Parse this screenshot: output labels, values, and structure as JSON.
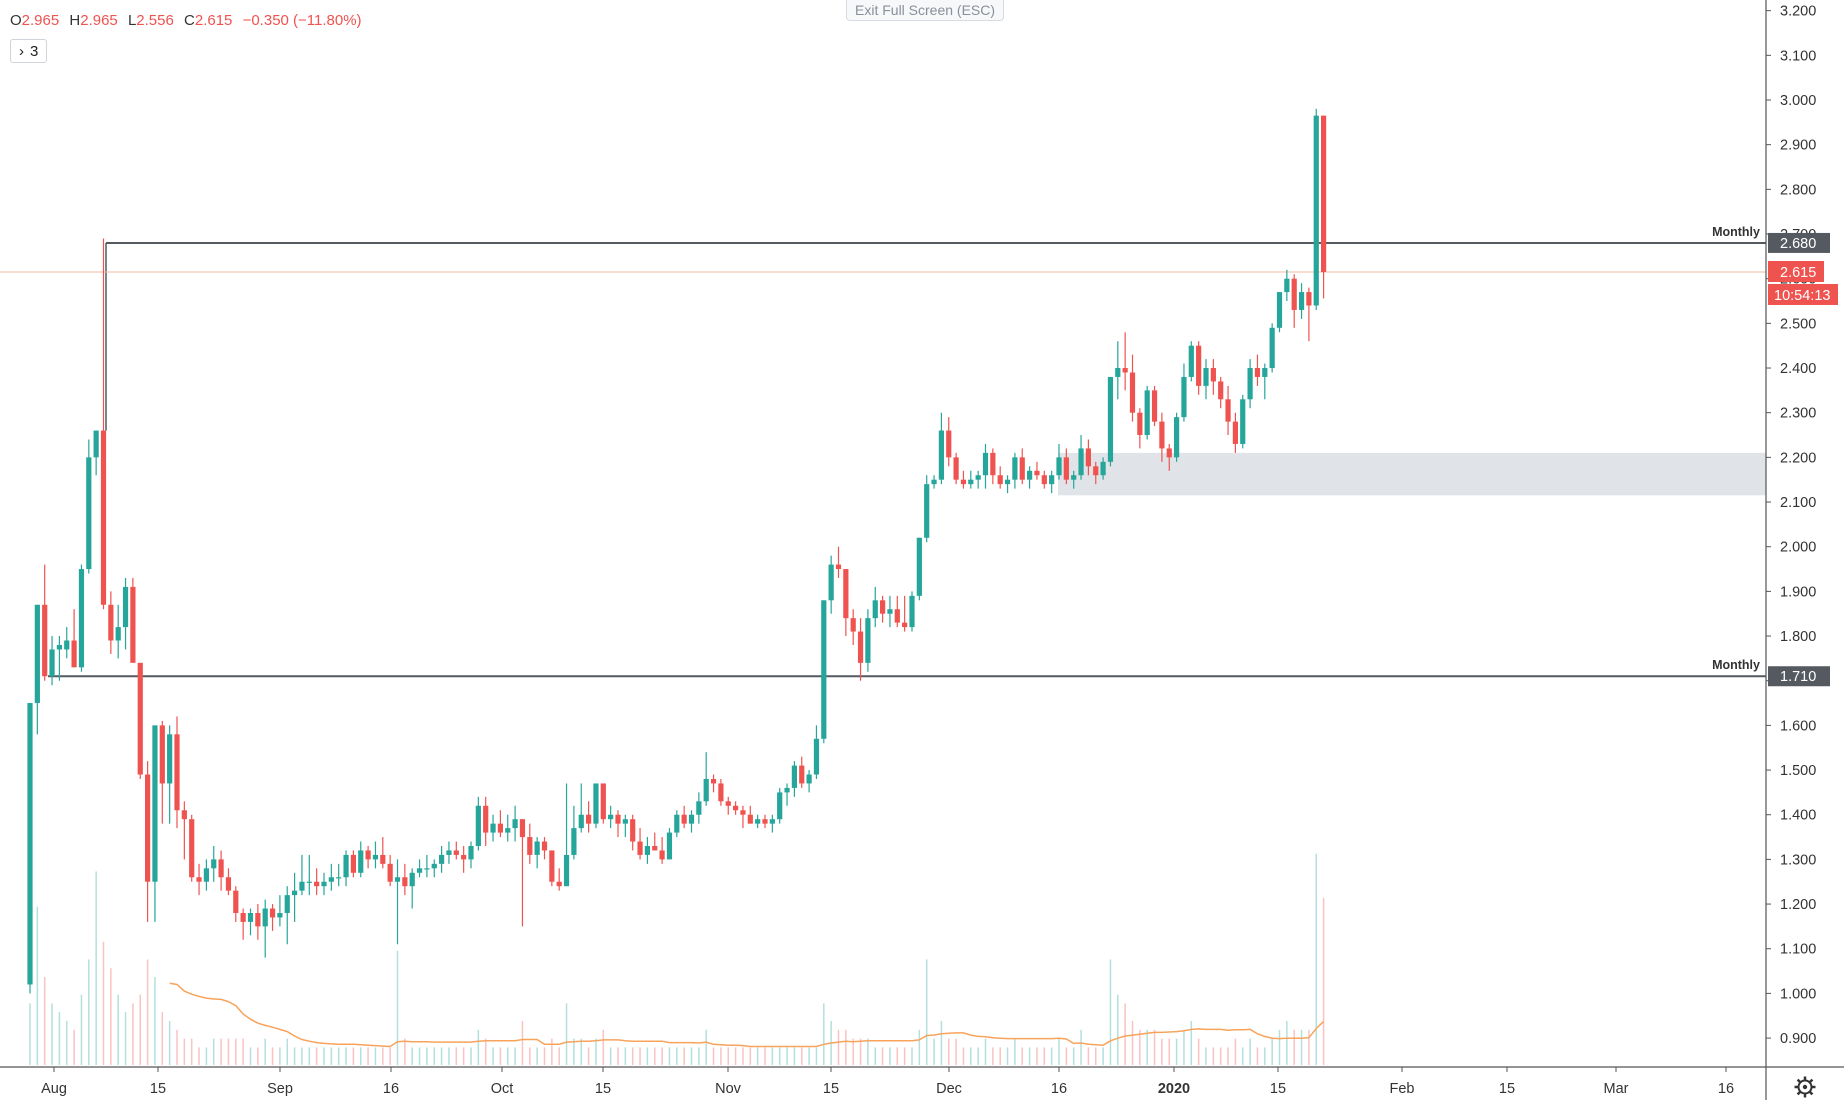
{
  "header": {
    "ohlc": [
      {
        "key": "O",
        "value": "2.965"
      },
      {
        "key": "H",
        "value": "2.965"
      },
      {
        "key": "L",
        "value": "2.556"
      },
      {
        "key": "C",
        "value": "2.615"
      }
    ],
    "change": "−0.350 (−11.80%)",
    "indicator_count": "3",
    "exit_fullscreen": "Exit Full Screen (ESC)",
    "settings_icon": "gear-icon"
  },
  "colors": {
    "up": "#26a69a",
    "down": "#ef5350",
    "ma": "#f7a35c",
    "zone": "#e0e3e7",
    "level": "#555a60",
    "price_line": "#f2b8a0",
    "axis_text": "#333333"
  },
  "chart_data": {
    "type": "candlestick",
    "x_ticks": [
      "Aug",
      "15",
      "Sep",
      "16",
      "Oct",
      "15",
      "Nov",
      "15",
      "Dec",
      "16",
      "2020",
      "15",
      "Feb",
      "15",
      "Mar",
      "16"
    ],
    "y_ticks": [
      "3.200",
      "3.100",
      "3.000",
      "2.900",
      "2.800",
      "2.700",
      "2.600",
      "2.500",
      "2.400",
      "2.300",
      "2.200",
      "2.100",
      "2.000",
      "1.900",
      "1.800",
      "1.700",
      "1.600",
      "1.500",
      "1.400",
      "1.300",
      "1.200",
      "1.100",
      "1.000",
      "0.900"
    ],
    "ylim": [
      0.82,
      3.2
    ],
    "levels": [
      {
        "label": "Monthly",
        "value": 2.68,
        "display": "2.680"
      },
      {
        "label": "Monthly",
        "value": 1.71,
        "display": "1.710"
      }
    ],
    "zone": {
      "from": 2.115,
      "to": 2.21
    },
    "last_price": {
      "value": 2.615,
      "display": "2.615",
      "countdown": "10:54:13"
    },
    "ohlc_series": [
      [
        1.02,
        1.65,
        1.0,
        1.65
      ],
      [
        1.65,
        1.87,
        1.58,
        1.87
      ],
      [
        1.87,
        1.96,
        1.7,
        1.71
      ],
      [
        1.71,
        1.8,
        1.69,
        1.77
      ],
      [
        1.77,
        1.8,
        1.7,
        1.78
      ],
      [
        1.77,
        1.82,
        1.75,
        1.79
      ],
      [
        1.79,
        1.86,
        1.73,
        1.73
      ],
      [
        1.73,
        1.96,
        1.72,
        1.95
      ],
      [
        1.95,
        2.24,
        1.94,
        2.2
      ],
      [
        2.2,
        2.26,
        2.16,
        2.26
      ],
      [
        2.26,
        2.69,
        1.86,
        1.87
      ],
      [
        1.87,
        1.9,
        1.76,
        1.79
      ],
      [
        1.79,
        1.87,
        1.75,
        1.82
      ],
      [
        1.82,
        1.93,
        1.77,
        1.91
      ],
      [
        1.91,
        1.93,
        1.75,
        1.74
      ],
      [
        1.74,
        1.74,
        1.48,
        1.49
      ],
      [
        1.49,
        1.52,
        1.16,
        1.25
      ],
      [
        1.25,
        1.6,
        1.16,
        1.6
      ],
      [
        1.6,
        1.61,
        1.38,
        1.47
      ],
      [
        1.47,
        1.6,
        1.38,
        1.58
      ],
      [
        1.58,
        1.62,
        1.37,
        1.41
      ],
      [
        1.41,
        1.43,
        1.3,
        1.39
      ],
      [
        1.39,
        1.4,
        1.25,
        1.26
      ],
      [
        1.26,
        1.29,
        1.22,
        1.25
      ],
      [
        1.25,
        1.3,
        1.23,
        1.28
      ],
      [
        1.28,
        1.33,
        1.25,
        1.3
      ],
      [
        1.3,
        1.32,
        1.23,
        1.26
      ],
      [
        1.26,
        1.28,
        1.22,
        1.23
      ],
      [
        1.23,
        1.24,
        1.16,
        1.18
      ],
      [
        1.18,
        1.19,
        1.12,
        1.16
      ],
      [
        1.16,
        1.19,
        1.13,
        1.18
      ],
      [
        1.18,
        1.2,
        1.12,
        1.15
      ],
      [
        1.15,
        1.21,
        1.08,
        1.19
      ],
      [
        1.19,
        1.2,
        1.14,
        1.17
      ],
      [
        1.17,
        1.22,
        1.15,
        1.18
      ],
      [
        1.18,
        1.24,
        1.11,
        1.22
      ],
      [
        1.22,
        1.27,
        1.16,
        1.23
      ],
      [
        1.23,
        1.31,
        1.22,
        1.25
      ],
      [
        1.25,
        1.31,
        1.22,
        1.25
      ],
      [
        1.25,
        1.28,
        1.22,
        1.24
      ],
      [
        1.24,
        1.27,
        1.22,
        1.25
      ],
      [
        1.25,
        1.29,
        1.23,
        1.26
      ],
      [
        1.26,
        1.29,
        1.24,
        1.26
      ],
      [
        1.26,
        1.32,
        1.24,
        1.31
      ],
      [
        1.31,
        1.32,
        1.26,
        1.27
      ],
      [
        1.27,
        1.34,
        1.26,
        1.32
      ],
      [
        1.32,
        1.33,
        1.28,
        1.3
      ],
      [
        1.3,
        1.34,
        1.28,
        1.31
      ],
      [
        1.31,
        1.35,
        1.28,
        1.29
      ],
      [
        1.29,
        1.31,
        1.24,
        1.25
      ],
      [
        1.25,
        1.3,
        1.11,
        1.26
      ],
      [
        1.26,
        1.29,
        1.22,
        1.24
      ],
      [
        1.24,
        1.28,
        1.19,
        1.27
      ],
      [
        1.27,
        1.3,
        1.26,
        1.28
      ],
      [
        1.28,
        1.31,
        1.26,
        1.28
      ],
      [
        1.28,
        1.3,
        1.26,
        1.29
      ],
      [
        1.29,
        1.33,
        1.27,
        1.31
      ],
      [
        1.31,
        1.34,
        1.29,
        1.32
      ],
      [
        1.32,
        1.34,
        1.3,
        1.31
      ],
      [
        1.31,
        1.33,
        1.27,
        1.3
      ],
      [
        1.3,
        1.34,
        1.28,
        1.33
      ],
      [
        1.33,
        1.44,
        1.32,
        1.42
      ],
      [
        1.42,
        1.44,
        1.33,
        1.36
      ],
      [
        1.36,
        1.4,
        1.34,
        1.38
      ],
      [
        1.38,
        1.41,
        1.35,
        1.36
      ],
      [
        1.36,
        1.4,
        1.34,
        1.37
      ],
      [
        1.37,
        1.42,
        1.34,
        1.39
      ],
      [
        1.39,
        1.39,
        1.15,
        1.35
      ],
      [
        1.35,
        1.38,
        1.29,
        1.31
      ],
      [
        1.31,
        1.35,
        1.28,
        1.34
      ],
      [
        1.34,
        1.35,
        1.3,
        1.32
      ],
      [
        1.32,
        1.32,
        1.24,
        1.25
      ],
      [
        1.25,
        1.28,
        1.23,
        1.24
      ],
      [
        1.24,
        1.47,
        1.24,
        1.31
      ],
      [
        1.31,
        1.42,
        1.3,
        1.37
      ],
      [
        1.37,
        1.47,
        1.36,
        1.4
      ],
      [
        1.4,
        1.43,
        1.36,
        1.38
      ],
      [
        1.38,
        1.47,
        1.37,
        1.47
      ],
      [
        1.47,
        1.47,
        1.38,
        1.39
      ],
      [
        1.39,
        1.42,
        1.37,
        1.4
      ],
      [
        1.4,
        1.41,
        1.35,
        1.38
      ],
      [
        1.38,
        1.4,
        1.35,
        1.39
      ],
      [
        1.39,
        1.4,
        1.32,
        1.34
      ],
      [
        1.34,
        1.37,
        1.3,
        1.31
      ],
      [
        1.31,
        1.35,
        1.29,
        1.33
      ],
      [
        1.33,
        1.36,
        1.32,
        1.32
      ],
      [
        1.32,
        1.35,
        1.29,
        1.3
      ],
      [
        1.3,
        1.37,
        1.3,
        1.36
      ],
      [
        1.36,
        1.41,
        1.35,
        1.4
      ],
      [
        1.4,
        1.42,
        1.37,
        1.38
      ],
      [
        1.38,
        1.41,
        1.36,
        1.4
      ],
      [
        1.4,
        1.45,
        1.38,
        1.43
      ],
      [
        1.43,
        1.54,
        1.42,
        1.48
      ],
      [
        1.48,
        1.49,
        1.45,
        1.47
      ],
      [
        1.47,
        1.48,
        1.42,
        1.43
      ],
      [
        1.43,
        1.44,
        1.4,
        1.42
      ],
      [
        1.42,
        1.43,
        1.4,
        1.41
      ],
      [
        1.41,
        1.42,
        1.37,
        1.4
      ],
      [
        1.4,
        1.42,
        1.38,
        1.38
      ],
      [
        1.38,
        1.4,
        1.37,
        1.39
      ],
      [
        1.39,
        1.4,
        1.37,
        1.38
      ],
      [
        1.38,
        1.4,
        1.36,
        1.39
      ],
      [
        1.39,
        1.46,
        1.38,
        1.45
      ],
      [
        1.45,
        1.47,
        1.42,
        1.46
      ],
      [
        1.46,
        1.52,
        1.44,
        1.51
      ],
      [
        1.51,
        1.53,
        1.46,
        1.47
      ],
      [
        1.47,
        1.5,
        1.45,
        1.49
      ],
      [
        1.49,
        1.6,
        1.48,
        1.57
      ],
      [
        1.57,
        1.88,
        1.56,
        1.88
      ],
      [
        1.88,
        1.98,
        1.85,
        1.96
      ],
      [
        1.96,
        2.0,
        1.93,
        1.95
      ],
      [
        1.95,
        1.95,
        1.8,
        1.84
      ],
      [
        1.84,
        1.86,
        1.78,
        1.81
      ],
      [
        1.81,
        1.84,
        1.7,
        1.74
      ],
      [
        1.74,
        1.86,
        1.72,
        1.84
      ],
      [
        1.84,
        1.91,
        1.82,
        1.88
      ],
      [
        1.88,
        1.89,
        1.83,
        1.85
      ],
      [
        1.85,
        1.89,
        1.82,
        1.86
      ],
      [
        1.86,
        1.89,
        1.82,
        1.83
      ],
      [
        1.83,
        1.89,
        1.81,
        1.82
      ],
      [
        1.82,
        1.9,
        1.81,
        1.89
      ],
      [
        1.89,
        2.02,
        1.88,
        2.02
      ],
      [
        2.02,
        2.16,
        2.01,
        2.14
      ],
      [
        2.14,
        2.16,
        2.13,
        2.15
      ],
      [
        2.15,
        2.3,
        2.14,
        2.26
      ],
      [
        2.26,
        2.29,
        2.18,
        2.2
      ],
      [
        2.2,
        2.21,
        2.14,
        2.15
      ],
      [
        2.15,
        2.17,
        2.13,
        2.14
      ],
      [
        2.14,
        2.17,
        2.13,
        2.15
      ],
      [
        2.15,
        2.17,
        2.13,
        2.16
      ],
      [
        2.16,
        2.23,
        2.13,
        2.21
      ],
      [
        2.21,
        2.22,
        2.14,
        2.16
      ],
      [
        2.16,
        2.18,
        2.13,
        2.14
      ],
      [
        2.14,
        2.16,
        2.12,
        2.15
      ],
      [
        2.15,
        2.21,
        2.13,
        2.2
      ],
      [
        2.2,
        2.22,
        2.14,
        2.15
      ],
      [
        2.15,
        2.18,
        2.13,
        2.17
      ],
      [
        2.17,
        2.19,
        2.15,
        2.16
      ],
      [
        2.16,
        2.17,
        2.13,
        2.14
      ],
      [
        2.14,
        2.17,
        2.12,
        2.16
      ],
      [
        2.16,
        2.23,
        2.15,
        2.2
      ],
      [
        2.2,
        2.22,
        2.14,
        2.15
      ],
      [
        2.15,
        2.17,
        2.13,
        2.16
      ],
      [
        2.16,
        2.25,
        2.15,
        2.22
      ],
      [
        2.22,
        2.24,
        2.16,
        2.18
      ],
      [
        2.18,
        2.19,
        2.14,
        2.16
      ],
      [
        2.16,
        2.2,
        2.15,
        2.19
      ],
      [
        2.19,
        2.38,
        2.18,
        2.38
      ],
      [
        2.38,
        2.46,
        2.33,
        2.4
      ],
      [
        2.4,
        2.48,
        2.35,
        2.39
      ],
      [
        2.39,
        2.43,
        2.28,
        2.3
      ],
      [
        2.3,
        2.31,
        2.22,
        2.25
      ],
      [
        2.25,
        2.36,
        2.24,
        2.35
      ],
      [
        2.35,
        2.36,
        2.27,
        2.28
      ],
      [
        2.28,
        2.3,
        2.19,
        2.22
      ],
      [
        2.22,
        2.23,
        2.17,
        2.2
      ],
      [
        2.2,
        2.3,
        2.19,
        2.29
      ],
      [
        2.29,
        2.41,
        2.28,
        2.38
      ],
      [
        2.38,
        2.46,
        2.37,
        2.45
      ],
      [
        2.45,
        2.46,
        2.34,
        2.36
      ],
      [
        2.36,
        2.42,
        2.33,
        2.4
      ],
      [
        2.4,
        2.42,
        2.34,
        2.37
      ],
      [
        2.37,
        2.38,
        2.31,
        2.33
      ],
      [
        2.33,
        2.36,
        2.25,
        2.28
      ],
      [
        2.28,
        2.3,
        2.21,
        2.23
      ],
      [
        2.23,
        2.34,
        2.22,
        2.33
      ],
      [
        2.33,
        2.42,
        2.31,
        2.4
      ],
      [
        2.4,
        2.43,
        2.36,
        2.38
      ],
      [
        2.38,
        2.41,
        2.33,
        2.4
      ],
      [
        2.4,
        2.5,
        2.39,
        2.49
      ],
      [
        2.49,
        2.57,
        2.48,
        2.57
      ],
      [
        2.57,
        2.62,
        2.55,
        2.6
      ],
      [
        2.6,
        2.61,
        2.49,
        2.53
      ],
      [
        2.53,
        2.59,
        2.51,
        2.57
      ],
      [
        2.57,
        2.58,
        2.46,
        2.54
      ],
      [
        2.54,
        2.98,
        2.53,
        2.965
      ],
      [
        2.965,
        2.965,
        2.556,
        2.615
      ]
    ],
    "volume": [
      0.07,
      0.18,
      0.1,
      0.07,
      0.06,
      0.05,
      0.04,
      0.08,
      0.12,
      0.22,
      0.14,
      0.11,
      0.08,
      0.06,
      0.07,
      0.08,
      0.12,
      0.1,
      0.06,
      0.05,
      0.04,
      0.03,
      0.03,
      0.02,
      0.02,
      0.03,
      0.03,
      0.03,
      0.03,
      0.03,
      0.02,
      0.02,
      0.03,
      0.02,
      0.02,
      0.03,
      0.02,
      0.02,
      0.02,
      0.02,
      0.02,
      0.02,
      0.02,
      0.02,
      0.02,
      0.02,
      0.02,
      0.02,
      0.02,
      0.02,
      0.13,
      0.03,
      0.02,
      0.02,
      0.02,
      0.02,
      0.02,
      0.02,
      0.02,
      0.02,
      0.02,
      0.04,
      0.03,
      0.02,
      0.02,
      0.02,
      0.02,
      0.05,
      0.02,
      0.02,
      0.02,
      0.03,
      0.02,
      0.07,
      0.03,
      0.03,
      0.02,
      0.03,
      0.04,
      0.02,
      0.02,
      0.02,
      0.02,
      0.02,
      0.02,
      0.02,
      0.02,
      0.02,
      0.02,
      0.02,
      0.02,
      0.02,
      0.04,
      0.02,
      0.02,
      0.02,
      0.02,
      0.02,
      0.02,
      0.02,
      0.02,
      0.02,
      0.02,
      0.02,
      0.02,
      0.02,
      0.02,
      0.02,
      0.07,
      0.05,
      0.04,
      0.04,
      0.03,
      0.03,
      0.03,
      0.02,
      0.02,
      0.02,
      0.02,
      0.02,
      0.02,
      0.04,
      0.12,
      0.03,
      0.05,
      0.03,
      0.03,
      0.02,
      0.02,
      0.02,
      0.03,
      0.02,
      0.02,
      0.02,
      0.03,
      0.02,
      0.02,
      0.02,
      0.02,
      0.02,
      0.03,
      0.02,
      0.02,
      0.04,
      0.02,
      0.02,
      0.02,
      0.12,
      0.08,
      0.07,
      0.05,
      0.04,
      0.04,
      0.04,
      0.03,
      0.03,
      0.03,
      0.04,
      0.05,
      0.03,
      0.02,
      0.02,
      0.02,
      0.02,
      0.03,
      0.02,
      0.03,
      0.02,
      0.02,
      0.03,
      0.04,
      0.05,
      0.04,
      0.04,
      0.04,
      0.24,
      0.19
    ]
  }
}
